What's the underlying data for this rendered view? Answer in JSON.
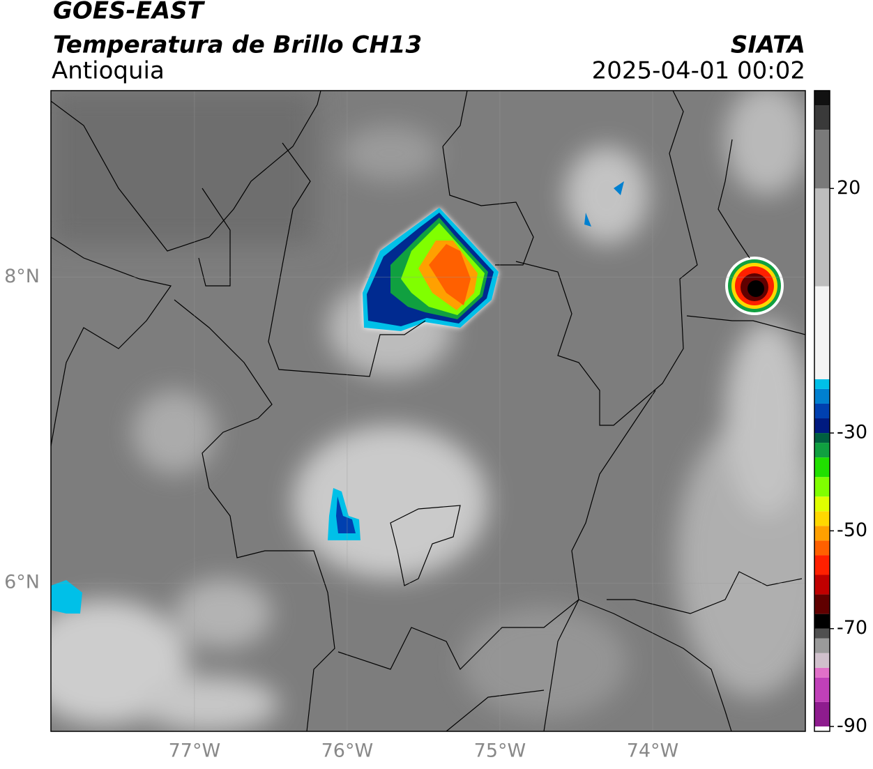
{
  "header": {
    "title": "GOES-EAST",
    "subtitle": "Temperatura de Brillo CH13",
    "region": "Antioquia",
    "source": "SIATA",
    "datetime": "2025-04-01 00:02"
  },
  "map": {
    "xlim": [
      -77.94,
      -73.0
    ],
    "ylim": [
      5.03,
      9.22
    ],
    "xticks": [
      {
        "value": -77,
        "label": "77°W"
      },
      {
        "value": -76,
        "label": "76°W"
      },
      {
        "value": -75,
        "label": "75°W"
      },
      {
        "value": -74,
        "label": "74°W"
      }
    ],
    "yticks": [
      {
        "value": 8,
        "label": "8°N"
      },
      {
        "value": 6,
        "label": "6°N"
      }
    ],
    "grid": true
  },
  "colorbar": {
    "lim": [
      -91,
      40
    ],
    "ticks": [
      20,
      -30,
      -50,
      -70,
      -90
    ],
    "stops": [
      {
        "value": -91,
        "color": "#ffffff"
      },
      {
        "value": -90,
        "color": "#8e1c8e"
      },
      {
        "value": -85,
        "color": "#c040b8"
      },
      {
        "value": -80,
        "color": "#e070c8"
      },
      {
        "value": -78,
        "color": "#d0c0cc"
      },
      {
        "value": -75,
        "color": "#9a9a9a"
      },
      {
        "value": -72,
        "color": "#505050"
      },
      {
        "value": -70,
        "color": "#000000"
      },
      {
        "value": -67,
        "color": "#600000"
      },
      {
        "value": -63,
        "color": "#c00000"
      },
      {
        "value": -59,
        "color": "#ff2000"
      },
      {
        "value": -55,
        "color": "#ff6000"
      },
      {
        "value": -52,
        "color": "#ffa000"
      },
      {
        "value": -49,
        "color": "#ffd800"
      },
      {
        "value": -46,
        "color": "#e0ff00"
      },
      {
        "value": -43,
        "color": "#80ff00"
      },
      {
        "value": -39,
        "color": "#20e000"
      },
      {
        "value": -35,
        "color": "#10a040"
      },
      {
        "value": -32,
        "color": "#006040"
      },
      {
        "value": -30,
        "color": "#001a80"
      },
      {
        "value": -27,
        "color": "#0040b0"
      },
      {
        "value": -24,
        "color": "#0080d0"
      },
      {
        "value": -21,
        "color": "#00c0e8"
      },
      {
        "value": -19,
        "color": "#f4f4f4"
      },
      {
        "value": 0,
        "color": "#bdbdbd"
      },
      {
        "value": 20,
        "color": "#7a7a7a"
      },
      {
        "value": 32,
        "color": "#3a3a3a"
      },
      {
        "value": 37,
        "color": "#111111"
      }
    ]
  }
}
